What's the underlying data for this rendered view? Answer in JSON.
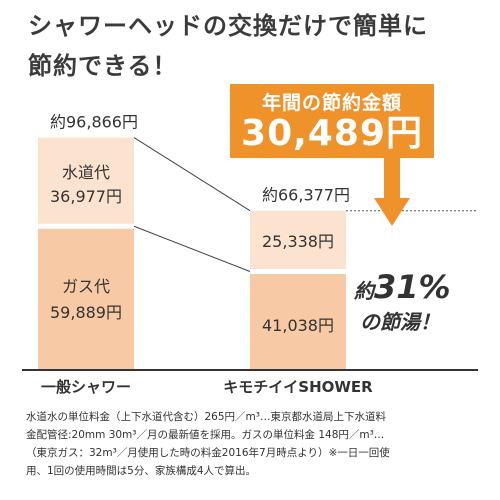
{
  "headline": {
    "line1": "シャワーヘッドの交換だけで簡単に",
    "line2": "節約できる！"
  },
  "callout": {
    "label": "年間の節約金額",
    "amount": "30,489円"
  },
  "saving": {
    "prefix": "約",
    "value": "31%",
    "suffix": "の節湯！"
  },
  "colors": {
    "accent": "#f0922a",
    "water_segment": "#fce3d0",
    "gas_segment": "#f7c9a4",
    "white_band": "#ffffff",
    "baseline": "#333333",
    "dotted_line": "#555555",
    "connector": "#444444"
  },
  "chart_data": {
    "type": "bar",
    "stacked": true,
    "unit": "円",
    "categories": [
      "一般シャワー",
      "キモチイイSHOWER"
    ],
    "total_labels": [
      "約96,866円",
      "約66,377円"
    ],
    "totals": [
      96866,
      66377
    ],
    "series": [
      {
        "name": "水道代",
        "values": [
          36977,
          25338
        ],
        "value_labels": [
          "36,977円",
          "25,338円"
        ]
      },
      {
        "name": "ガス代",
        "values": [
          59889,
          41038
        ],
        "value_labels": [
          "59,889円",
          "41,038円"
        ]
      }
    ]
  },
  "footnote": {
    "lines": [
      "水道水の単位料金（上下水道代含む）265円／m³…東京都水道局上下水道料",
      "金配管径:20mm 30m³／月の最新値を採用。ガスの単位料金 148円／m³…",
      "（東京ガス：32m³／月使用した時の料金2016年7月時点より）※一日一回使",
      "用、1回の使用時間は5分、家族構成4人で算出。"
    ]
  }
}
